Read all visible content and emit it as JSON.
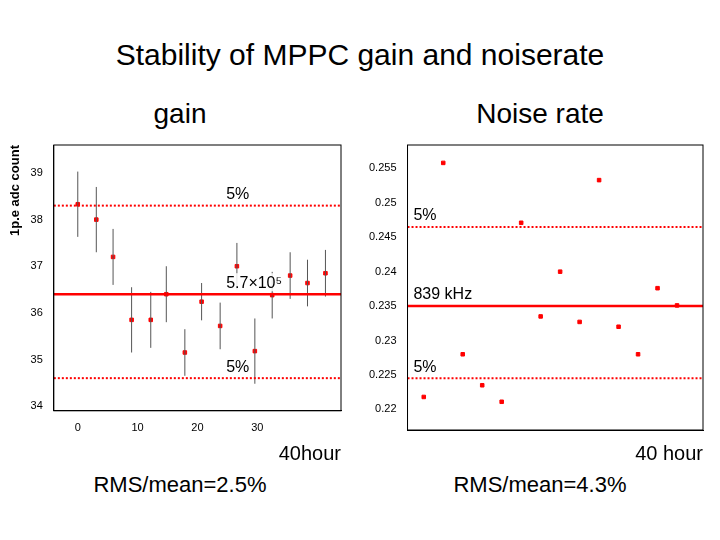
{
  "title": "Stability of MPPC gain and noiserate",
  "chart_data": [
    {
      "type": "scatter",
      "title": "gain",
      "ylabel": "1p.e adc count",
      "xlabel": "40hour",
      "annotation": "RMS/mean=2.5%",
      "color": "#ff0000",
      "marker": "square",
      "grid": false,
      "x": [
        0,
        3.1,
        5.9,
        9,
        12.2,
        14.8,
        17.9,
        20.7,
        23.8,
        26.6,
        29.6,
        32.5,
        35.5,
        38.4,
        41.4
      ],
      "values": [
        38.33,
        38.0,
        37.2,
        35.85,
        35.85,
        36.4,
        35.15,
        36.24,
        35.72,
        37.0,
        35.18,
        36.38,
        36.8,
        36.64,
        36.85
      ],
      "errors": [
        0.7,
        0.7,
        0.6,
        0.7,
        0.6,
        0.6,
        0.5,
        0.4,
        0.5,
        0.5,
        0.7,
        0.5,
        0.5,
        0.5,
        0.5
      ],
      "xlim": [
        -4,
        44
      ],
      "xticks": [
        0,
        10,
        20,
        30
      ],
      "ylim": [
        33.9,
        39.6
      ],
      "yticks": [
        34,
        35,
        36,
        37,
        38,
        39
      ],
      "reference_lines": [
        {
          "value": 36.4,
          "label": "5.7×10⁵",
          "line_style": "solid"
        },
        {
          "value": 38.3,
          "label": "5%",
          "line_style": "dotted"
        },
        {
          "value": 34.6,
          "label": "5%",
          "line_style": "dotted"
        }
      ]
    },
    {
      "type": "scatter",
      "title": "Noise rate",
      "xlabel": "40 hour",
      "annotation": "RMS/mean=4.3%",
      "color": "#ff0000",
      "marker": "square",
      "grid": false,
      "tick_labels": "y",
      "x": [
        0,
        3,
        6,
        9,
        12,
        15,
        18,
        21,
        24,
        27,
        30,
        33,
        36,
        39
      ],
      "values": [
        0.2218,
        0.2558,
        0.228,
        0.2235,
        0.2211,
        0.2471,
        0.2335,
        0.24,
        0.2327,
        0.2533,
        0.232,
        0.228,
        0.2376,
        0.2351
      ],
      "xlim": [
        -2.5,
        43
      ],
      "ylim": [
        0.217,
        0.2584
      ],
      "yticks": [
        0.22,
        0.225,
        0.23,
        0.235,
        0.24,
        0.245,
        0.25,
        0.255
      ],
      "reference_lines": [
        {
          "value": 0.235,
          "label": "839 kHz",
          "line_style": "solid"
        },
        {
          "value": 0.2465,
          "label": "5%",
          "line_style": "dotted"
        },
        {
          "value": 0.2245,
          "label": "5%",
          "line_style": "dotted"
        }
      ]
    }
  ]
}
